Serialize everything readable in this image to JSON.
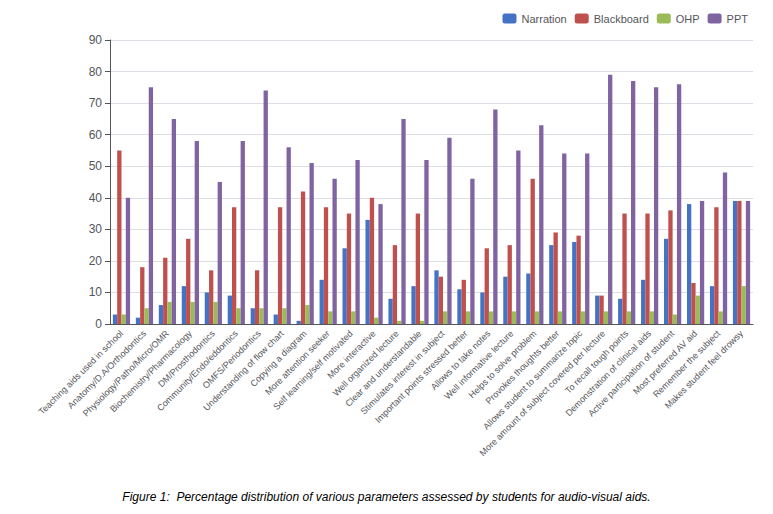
{
  "chart_data": {
    "type": "bar",
    "title": "Figure 1:  Percentage distribution of various parameters assessed by students for audio-visual aids.",
    "categories": [
      "Teaching aids used in school",
      "Anatomy/D.A/Orthodontics",
      "Physiology/Patho/Micro/OMR",
      "Biochemistry/Pharmacology",
      "DM/Prosthodontics",
      "Community/Endo/eddontics",
      "OMFS/Periodontics",
      "Understanding of flow chart",
      "Copying a diagram",
      "More attention seeker",
      "Self learning/self motivated",
      "More interactive",
      "Well organized lecture",
      "Clear and understandable",
      "Stimulates interest in subject",
      "Important points stressed better",
      "Allows to take notes",
      "Well informative lecture",
      "Helps to solve problem",
      "Provokes thoughts better",
      "Allows student to summarize topic",
      "More amount of subject covered per lecture",
      "To recall tough points",
      "Demonstration of clinical aids",
      "Active participation of student",
      "Most preferred AV aid",
      "Remember the subject",
      "Makes student feel drowsy"
    ],
    "series": [
      {
        "name": "Narration",
        "color": "#4472c4",
        "values": [
          3,
          2,
          6,
          12,
          10,
          9,
          5,
          3,
          1,
          14,
          24,
          33,
          8,
          12,
          17,
          11,
          10,
          15,
          16,
          25,
          26,
          9,
          8,
          14,
          27,
          38,
          12,
          39
        ]
      },
      {
        "name": "Blackboard",
        "color": "#c0504d",
        "values": [
          55,
          18,
          21,
          27,
          17,
          37,
          17,
          37,
          42,
          37,
          35,
          40,
          25,
          35,
          15,
          14,
          24,
          25,
          46,
          29,
          28,
          9,
          35,
          35,
          36,
          13,
          37,
          39
        ]
      },
      {
        "name": "OHP",
        "color": "#9bbb59",
        "values": [
          3,
          5,
          7,
          7,
          7,
          5,
          5,
          5,
          6,
          4,
          4,
          2,
          1,
          1,
          4,
          4,
          4,
          4,
          4,
          4,
          4,
          4,
          4,
          4,
          3,
          9,
          4,
          12
        ]
      },
      {
        "name": "PPT",
        "color": "#8064a2",
        "values": [
          40,
          75,
          65,
          58,
          45,
          58,
          74,
          56,
          51,
          46,
          52,
          38,
          65,
          52,
          59,
          46,
          68,
          55,
          63,
          54,
          54,
          79,
          77,
          75,
          76,
          39,
          48,
          39
        ]
      }
    ],
    "ylim": [
      0,
      90
    ],
    "yticks": [
      0,
      10,
      20,
      30,
      40,
      50,
      60,
      70,
      80,
      90
    ],
    "grid": true,
    "legend": "upper right"
  }
}
